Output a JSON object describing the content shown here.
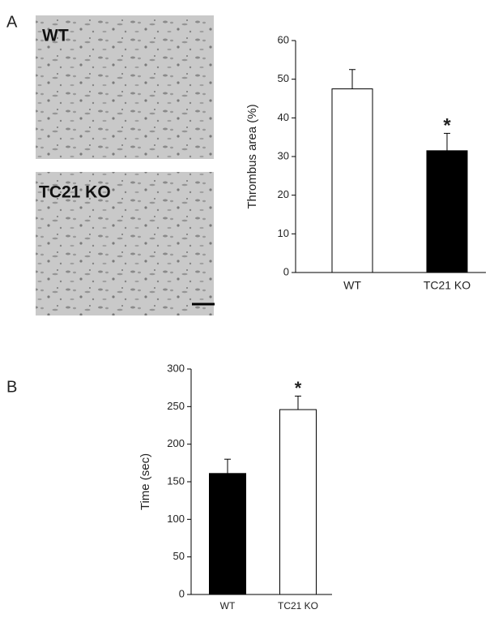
{
  "panel_labels": [
    "A",
    "B"
  ],
  "image_labels": [
    "WT",
    "TC21 KO"
  ],
  "chart_data": [
    {
      "type": "bar",
      "ylabel": "Thrombus area (%)",
      "categories": [
        "WT",
        "TC21 KO"
      ],
      "values": [
        47.5,
        31.5
      ],
      "errors": [
        5,
        4.5
      ],
      "colors": [
        "#ffffff",
        "#000000"
      ],
      "ylim": [
        0,
        60
      ],
      "yticks": [
        0,
        10,
        20,
        30,
        40,
        50,
        60
      ],
      "annotations": [
        {
          "category": "TC21 KO",
          "text": "*"
        }
      ]
    },
    {
      "type": "bar",
      "ylabel": "Time (sec)",
      "categories": [
        "WT",
        "TC21 KO"
      ],
      "values": [
        161,
        246
      ],
      "errors": [
        19,
        18
      ],
      "colors": [
        "#000000",
        "#ffffff"
      ],
      "ylim": [
        0,
        300
      ],
      "yticks": [
        0,
        50,
        100,
        150,
        200,
        250,
        300
      ],
      "annotations": [
        {
          "category": "TC21 KO",
          "text": "*"
        }
      ]
    }
  ]
}
